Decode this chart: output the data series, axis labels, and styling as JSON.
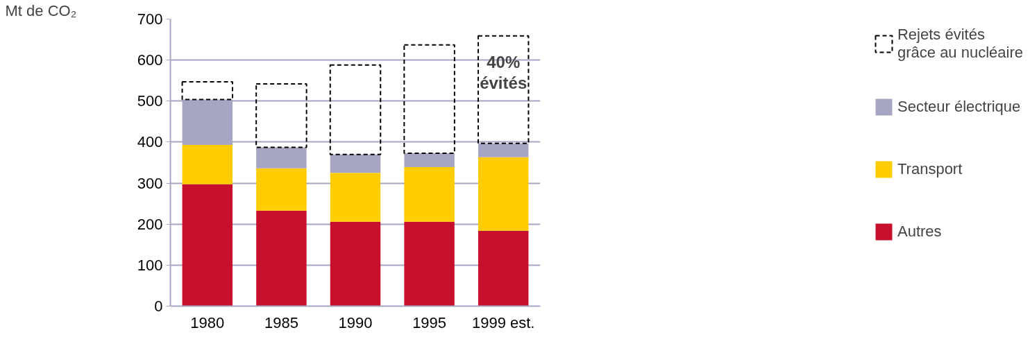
{
  "chart_data": {
    "type": "bar",
    "stacked": true,
    "ylabel": "Mt de CO₂",
    "categories": [
      "1980",
      "1985",
      "1990",
      "1995",
      "1999 est."
    ],
    "series": [
      {
        "name": "Autres",
        "color": "#c8102e",
        "values": [
          297,
          233,
          206,
          206,
          184
        ]
      },
      {
        "name": "Transport",
        "color": "#ffcc00",
        "values": [
          96,
          103,
          119,
          133,
          179
        ]
      },
      {
        "name": "Secteur électrique",
        "color": "#a6a6c4",
        "values": [
          111,
          51,
          45,
          34,
          34
        ]
      },
      {
        "name": "Rejets évités\ngrâce au nucléaire",
        "color": "#000000",
        "line_style": "dashed",
        "values": [
          43,
          155,
          218,
          264,
          262
        ]
      }
    ],
    "ylim": [
      0,
      700
    ],
    "yticks": [
      0,
      100,
      200,
      300,
      400,
      500,
      600,
      700
    ],
    "grid": "y",
    "legend": "right",
    "annotations": [
      "40%\névités"
    ]
  }
}
